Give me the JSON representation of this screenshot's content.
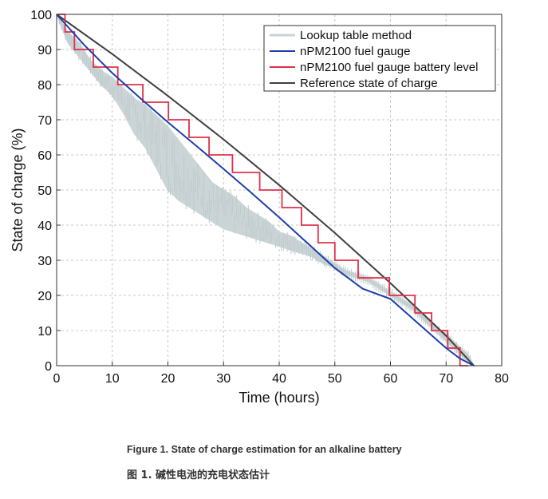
{
  "chart_data": {
    "type": "line",
    "xlabel": "Time (hours)",
    "ylabel": "State of charge (%)",
    "xlim": [
      0,
      80
    ],
    "ylim": [
      0,
      100
    ],
    "xticks": [
      0,
      10,
      20,
      30,
      40,
      50,
      60,
      70,
      80
    ],
    "yticks": [
      0,
      10,
      20,
      30,
      40,
      50,
      60,
      70,
      80,
      90,
      100
    ],
    "grid": true,
    "legend_position": "top-right",
    "series": [
      {
        "name": "Lookup table method",
        "color": "#c9d3d5",
        "style": "noisy band",
        "x": [
          0,
          2,
          4,
          6,
          8,
          10,
          12,
          14,
          16,
          18,
          20,
          22,
          24,
          26,
          28,
          30,
          32,
          34,
          36,
          38,
          40,
          42,
          44,
          46,
          48,
          50,
          52,
          54,
          56,
          58,
          60,
          62,
          64,
          66,
          68,
          70,
          72,
          74,
          75
        ],
        "upper": [
          100,
          95,
          92,
          87,
          84,
          82,
          79,
          76,
          74,
          71,
          68,
          64,
          60,
          56,
          52,
          50,
          48,
          45,
          43,
          41,
          38,
          37,
          35,
          33,
          31,
          29,
          27,
          26,
          25,
          23,
          21,
          19,
          17,
          14,
          11,
          9,
          6,
          3,
          0
        ],
        "lower": [
          100,
          92,
          88,
          84,
          80,
          77,
          72,
          66,
          62,
          56,
          50,
          47,
          45,
          43,
          41,
          39,
          38,
          37,
          36,
          35,
          34,
          33,
          32,
          31,
          29,
          28,
          26,
          25,
          24,
          22,
          20,
          18,
          16,
          13,
          10,
          7,
          4,
          1,
          0
        ]
      },
      {
        "name": "nPM2100 fuel gauge",
        "color": "#1f3fa8",
        "x": [
          0,
          5,
          10,
          15,
          20,
          25,
          30,
          35,
          40,
          45,
          50,
          55,
          60,
          65,
          70,
          72.5,
          75
        ],
        "y": [
          100,
          91.2,
          83.3,
          76.2,
          69.3,
          62.7,
          56.0,
          49.2,
          42.2,
          35.0,
          27.8,
          21.9,
          19.0,
          12.0,
          5.0,
          2.0,
          0
        ]
      },
      {
        "name": "nPM2100 fuel gauge battery level",
        "color": "#e0304a",
        "style": "step",
        "step_times": [
          0.3,
          1.5,
          3.2,
          6.6,
          11.0,
          15.5,
          20.1,
          23.8,
          27.4,
          31.6,
          36.5,
          40.5,
          44.0,
          47.0,
          50.0,
          54.2,
          59.8,
          64.4,
          67.4,
          70.3,
          72.5,
          74.0
        ],
        "step_values": [
          100,
          95,
          90,
          85,
          80,
          75,
          70,
          65,
          60,
          55,
          50,
          45,
          40,
          35,
          30,
          25,
          20,
          15,
          10,
          5,
          0
        ]
      },
      {
        "name": "Reference state of charge",
        "color": "#404040",
        "x": [
          0,
          10,
          20,
          30,
          40,
          50,
          60,
          70,
          75
        ],
        "y": [
          100,
          88.7,
          76.8,
          64.4,
          51.4,
          37.8,
          23.5,
          8.5,
          0
        ]
      }
    ]
  },
  "caption": {
    "english": "Figure 1. State of charge estimation for an alkaline battery",
    "chinese": "图 1. 碱性电池的充电状态估计"
  }
}
